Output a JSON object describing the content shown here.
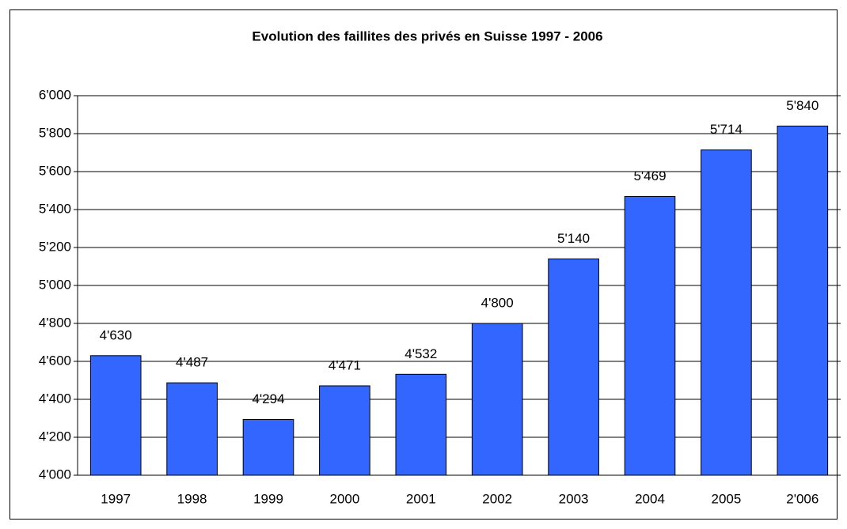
{
  "chart_data": {
    "type": "bar",
    "title": "Evolution des faillites des privés en Suisse 1997 - 2006",
    "categories": [
      "1997",
      "1998",
      "1999",
      "2000",
      "2001",
      "2002",
      "2003",
      "2004",
      "2005",
      "2'006"
    ],
    "values": [
      4630,
      4487,
      4294,
      4471,
      4532,
      4800,
      5140,
      5469,
      5714,
      5840
    ],
    "value_labels": [
      "4'630",
      "4'487",
      "4'294",
      "4'471",
      "4'532",
      "4'800",
      "5'140",
      "5'469",
      "5'714",
      "5'840"
    ],
    "color": "#3366ff",
    "ylim": [
      4000,
      6000
    ],
    "yticks": [
      {
        "value": 4000,
        "label": "4'000"
      },
      {
        "value": 4200,
        "label": "4'200"
      },
      {
        "value": 4400,
        "label": "4'400"
      },
      {
        "value": 4600,
        "label": "4'600"
      },
      {
        "value": 4800,
        "label": "4'800"
      },
      {
        "value": 5000,
        "label": "5'000"
      },
      {
        "value": 5200,
        "label": "5'200"
      },
      {
        "value": 5400,
        "label": "5'400"
      },
      {
        "value": 5600,
        "label": "5'600"
      },
      {
        "value": 5800,
        "label": "5'800"
      },
      {
        "value": 6000,
        "label": "6'000"
      }
    ],
    "grid": true
  }
}
